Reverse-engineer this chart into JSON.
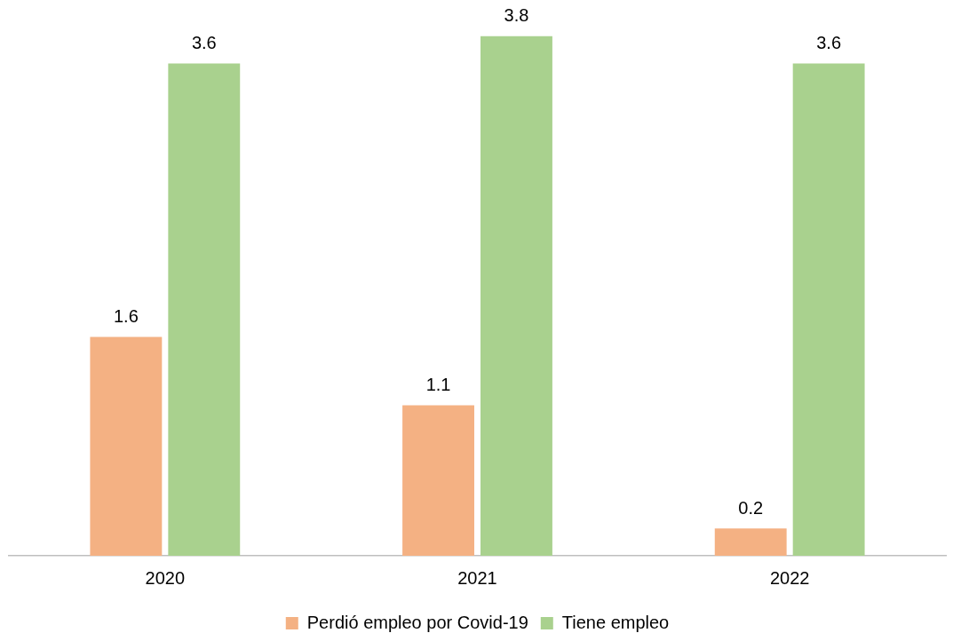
{
  "chart_data": {
    "type": "bar",
    "categories": [
      "2020",
      "2021",
      "2022"
    ],
    "series": [
      {
        "name": "Perdió empleo por Covid-19",
        "color": "#f4b183",
        "values": [
          1.6,
          1.1,
          0.2
        ]
      },
      {
        "name": "Tiene empleo",
        "color": "#a9d18e",
        "values": [
          3.6,
          3.8,
          3.6
        ]
      }
    ],
    "data_labels": true,
    "legend": "bottom",
    "grid": false
  }
}
